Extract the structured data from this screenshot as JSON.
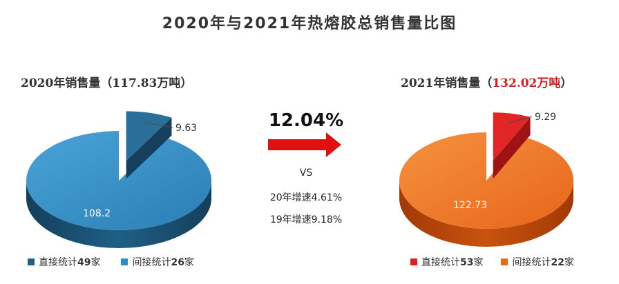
{
  "title": "2020年与2021年热熔胶总销售量比图",
  "left": {
    "subtitle_prefix": "2020年销售量（",
    "subtitle_value": "117.83万吨",
    "subtitle_suffix": "）",
    "legend": [
      {
        "label": "直接统计",
        "count": "49",
        "unit": "家",
        "color": "#1f5f86"
      },
      {
        "label": "间接统计",
        "count": "26",
        "unit": "家",
        "color": "#2e8bc2"
      }
    ]
  },
  "right": {
    "subtitle_prefix": "2021年销售量（",
    "subtitle_value": "132.02万吨",
    "subtitle_suffix": "）",
    "legend": [
      {
        "label": "直接统计",
        "count": "53",
        "unit": "家",
        "color": "#e41c1c"
      },
      {
        "label": "间接统计",
        "count": "22",
        "unit": "家",
        "color": "#e8691e"
      }
    ]
  },
  "middle": {
    "growth": "12.04%",
    "vs": "VS",
    "rate20": "20年增速4.61%",
    "rate19": "19年增速9.18%",
    "arrow_color": "#e01010"
  },
  "chart_data": [
    {
      "type": "pie",
      "title": "2020年销售量（117.83万吨）",
      "slices": [
        {
          "name": "直接统计49家",
          "value": 9.63,
          "color": "#2a6f9a",
          "exploded": true
        },
        {
          "name": "间接统计26家",
          "value": 108.2,
          "color": "#3a95c8"
        }
      ]
    },
    {
      "type": "pie",
      "title": "2021年销售量（132.02万吨）",
      "slices": [
        {
          "name": "直接统计53家",
          "value": 9.29,
          "color": "#e22626",
          "exploded": true
        },
        {
          "name": "间接统计22家",
          "value": 122.73,
          "color": "#f07a25"
        }
      ]
    }
  ]
}
